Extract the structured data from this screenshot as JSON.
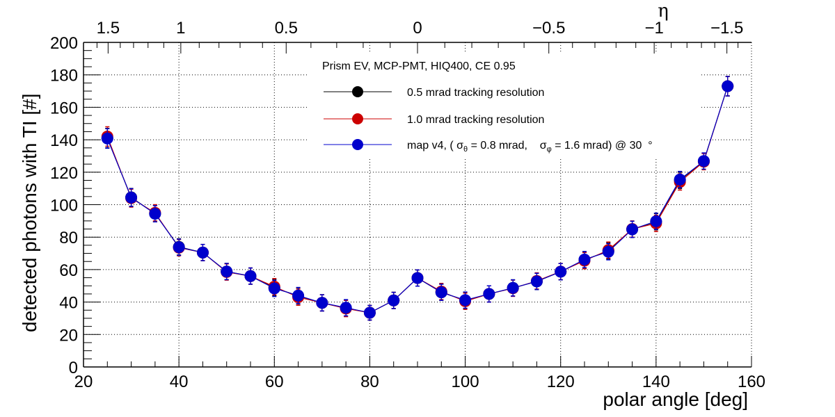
{
  "chart_data": {
    "type": "line",
    "xlabel": "polar angle [deg]",
    "ylabel": "detected photons with TI [#]",
    "xlim": [
      20,
      160
    ],
    "ylim": [
      0,
      200
    ],
    "grid": true,
    "x_ticks": [
      20,
      40,
      60,
      80,
      100,
      120,
      140,
      160
    ],
    "y_ticks": [
      0,
      20,
      40,
      60,
      80,
      100,
      120,
      140,
      160,
      180,
      200
    ],
    "top_axis": {
      "label": "η",
      "variable": "pseudorapidity",
      "ticks": [
        1.5,
        1,
        0.5,
        0,
        -0.5,
        -1,
        -1.5
      ],
      "tick_labels": [
        "1.5",
        "1",
        "0.5",
        "0",
        "−0.5",
        "−1",
        "−1.5"
      ]
    },
    "legend": {
      "title": "Prism EV, MCP-PMT, HIQ400, CE 0.95",
      "placement": "top-center",
      "entries": [
        {
          "label": "0.5 mrad tracking resolution"
        },
        {
          "label": "1.0 mrad tracking resolution"
        },
        {
          "label_parts": [
            "map v4, ( σ",
            "θ",
            " = 0.8 mrad,    σ",
            "φ",
            " = 1.6 mrad) @ 30  °"
          ]
        }
      ]
    },
    "x": [
      25,
      30,
      35,
      40,
      45,
      50,
      55,
      60,
      65,
      70,
      75,
      80,
      85,
      90,
      95,
      100,
      105,
      110,
      115,
      120,
      125,
      130,
      135,
      140,
      145,
      150,
      155
    ],
    "series": [
      {
        "name": "0.5 mrad tracking resolution",
        "color": "#000000",
        "values": [
          141,
          104.5,
          94.5,
          74,
          70.5,
          58.8,
          56,
          48.8,
          43.8,
          39.5,
          36.3,
          33.4,
          41,
          54.8,
          46,
          41,
          45,
          48.7,
          52.7,
          58.7,
          66,
          71.5,
          84.8,
          89.5,
          115,
          126.8,
          173
        ],
        "errors": [
          6,
          5.5,
          5,
          5,
          5,
          5,
          5,
          5,
          5,
          5,
          5,
          4.5,
          5,
          5,
          5,
          5,
          5,
          5,
          5,
          5,
          5,
          5,
          5,
          5,
          5,
          5,
          6
        ]
      },
      {
        "name": "1.0 mrad tracking resolution",
        "color": "#cc0000",
        "values": [
          142,
          104,
          95,
          73.5,
          70.5,
          58.5,
          56,
          49.5,
          43,
          39.5,
          36,
          33.4,
          41,
          54.8,
          46.5,
          40.5,
          45,
          48.5,
          53,
          58.8,
          65.5,
          72,
          85,
          88.5,
          114,
          126.5,
          173
        ],
        "errors": [
          6,
          5.5,
          5,
          5,
          5,
          5,
          5,
          5,
          5,
          5,
          5,
          4.5,
          5,
          5,
          5,
          5,
          5,
          5,
          5,
          5,
          5,
          5,
          5,
          5,
          5,
          5,
          6
        ]
      },
      {
        "name": "map v4, ( σθ = 0.8 mrad, σφ = 1.6 mrad) @ 30 °",
        "color": "#0000cc",
        "values": [
          140.8,
          104.4,
          94.4,
          73.8,
          70.5,
          58.8,
          56,
          48.4,
          44,
          39.5,
          36.5,
          33.4,
          41,
          54.8,
          46,
          41.2,
          45,
          48.7,
          52.7,
          58.7,
          66.2,
          71,
          84.8,
          89.8,
          115.5,
          126.9,
          173
        ],
        "errors": [
          6,
          5.5,
          5,
          5,
          5,
          5,
          5,
          5,
          5,
          5,
          5,
          4.5,
          5,
          5,
          5,
          5,
          5,
          5,
          5,
          5,
          5,
          5,
          5,
          5,
          5,
          5,
          6
        ]
      }
    ]
  }
}
